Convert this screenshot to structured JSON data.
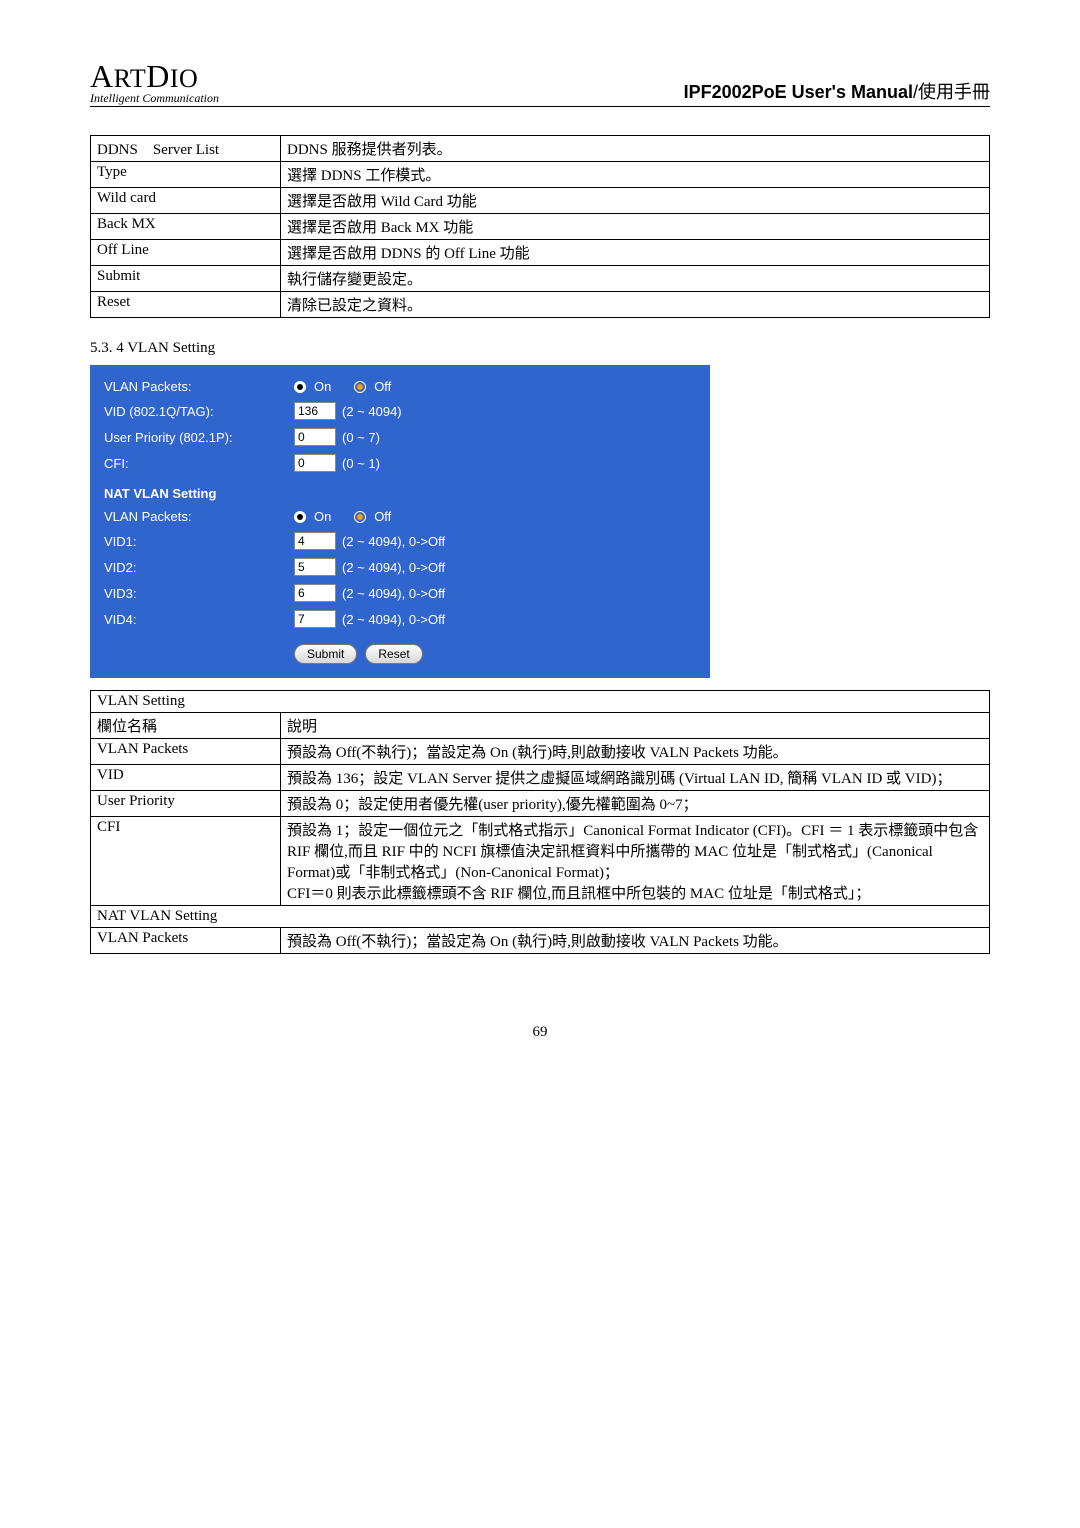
{
  "header": {
    "logo_line1": "ArtDio",
    "logo_line2": "Intelligent Communication",
    "title_bold": "IPF2002PoE User's Manual",
    "title_rest": "/使用手冊"
  },
  "ddns_table": [
    {
      "col1": "DDNS　Server List",
      "col2": "DDNS 服務提供者列表。"
    },
    {
      "col1": "Type",
      "col2": "選擇 DDNS 工作模式。"
    },
    {
      "col1": "Wild card",
      "col2": "選擇是否啟用 Wild Card  功能"
    },
    {
      "col1": "Back MX",
      "col2": "選擇是否啟用 Back MX 功能"
    },
    {
      "col1": "Off Line",
      "col2": "選擇是否啟用 DDNS 的 Off Line  功能"
    },
    {
      "col1": "Submit",
      "col2": "執行儲存變更設定。"
    },
    {
      "col1": "Reset",
      "col2": "清除已設定之資料。"
    }
  ],
  "section_title": "5.3. 4 VLAN Setting",
  "form": {
    "rows1": [
      {
        "label": "VLAN Packets:",
        "type": "radio",
        "on": "On",
        "off": "Off"
      },
      {
        "label": "VID (802.1Q/TAG):",
        "type": "num",
        "value": "136",
        "suffix": "(2 ~ 4094)"
      },
      {
        "label": "User Priority (802.1P):",
        "type": "num",
        "value": "0",
        "suffix": "(0 ~ 7)"
      },
      {
        "label": "CFI:",
        "type": "num",
        "value": "0",
        "suffix": "(0 ~ 1)"
      }
    ],
    "nat_heading": "NAT VLAN Setting",
    "rows2": [
      {
        "label": "VLAN Packets:",
        "type": "radio",
        "on": "On",
        "off": "Off"
      },
      {
        "label": "VID1:",
        "type": "num",
        "value": "4",
        "suffix": "(2 ~ 4094), 0->Off"
      },
      {
        "label": "VID2:",
        "type": "num",
        "value": "5",
        "suffix": "(2 ~ 4094), 0->Off"
      },
      {
        "label": "VID3:",
        "type": "num",
        "value": "6",
        "suffix": "(2 ~ 4094), 0->Off"
      },
      {
        "label": "VID4:",
        "type": "num",
        "value": "7",
        "suffix": "(2 ~ 4094), 0->Off"
      }
    ],
    "submit": "Submit",
    "reset": "Reset"
  },
  "vlan_table": {
    "heading": "VLAN Setting",
    "rows": [
      {
        "col1": "欄位名稱",
        "col2": "說明"
      },
      {
        "col1": "VLAN Packets",
        "col2": "預設為 Off(不執行)；當設定為 On (執行)時,則啟動接收 VALN Packets 功能。"
      },
      {
        "col1": "VID",
        "col2": "預設為 136；設定 VLAN Server 提供之虛擬區域網路識別碼 (Virtual LAN ID, 簡稱 VLAN ID 或 VID)；"
      },
      {
        "col1": "User Priority",
        "col2": "預設為 0；設定使用者優先權(user priority),優先權範圍為 0~7；"
      },
      {
        "col1": "CFI",
        "col2": "預設為 1；設定一個位元之「制式格式指示」Canonical Format Indicator (CFI)。CFI ＝ 1 表示標籤頭中包含 RIF 欄位,而且 RIF 中的 NCFI 旗標值決定訊框資料中所攜帶的 MAC 位址是「制式格式」(Canonical Format)或「非制式格式」(Non-Canonical Format)；\nCFI＝0 則表示此標籤標頭不含 RIF 欄位,而且訊框中所包裝的 MAC 位址是「制式格式」；"
      }
    ],
    "nat_heading": "NAT VLAN Setting",
    "last": {
      "col1": "VLAN Packets",
      "col2": "預設為 Off(不執行)；當設定為 On (執行)時,則啟動接收 VALN Packets 功能。"
    }
  },
  "pagenum": "69"
}
